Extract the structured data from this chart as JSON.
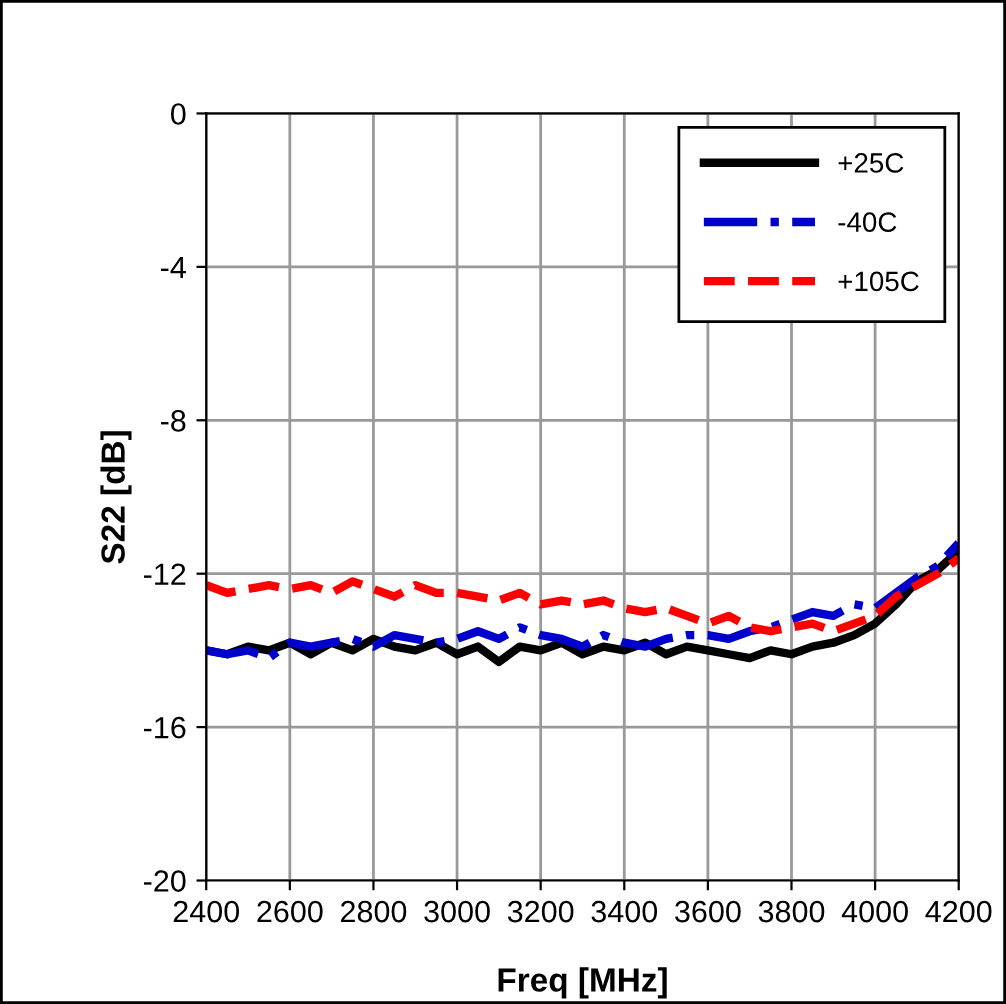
{
  "chart_data": {
    "type": "line",
    "xlabel": "Freq [MHz]",
    "ylabel": "S22 [dB]",
    "xlim": [
      2400,
      4200
    ],
    "xticks": [
      2400,
      2600,
      2800,
      3000,
      3200,
      3400,
      3600,
      3800,
      4000,
      4200
    ],
    "ylim": [
      -20,
      0
    ],
    "yticks": [
      -20,
      -16,
      -12,
      -8,
      -4,
      0
    ],
    "grid": true,
    "legend": "top right",
    "x": [
      2400,
      2450,
      2500,
      2550,
      2600,
      2650,
      2700,
      2750,
      2800,
      2850,
      2900,
      2950,
      3000,
      3050,
      3100,
      3150,
      3200,
      3250,
      3300,
      3350,
      3400,
      3450,
      3500,
      3550,
      3600,
      3650,
      3700,
      3750,
      3800,
      3850,
      3900,
      3950,
      4000,
      4050,
      4100,
      4150,
      4200
    ],
    "series": [
      {
        "name": "+25C",
        "color": "#000000",
        "line_style": "solid",
        "values": [
          -14.0,
          -14.1,
          -13.9,
          -14.0,
          -13.8,
          -14.1,
          -13.8,
          -14.0,
          -13.7,
          -13.9,
          -14.0,
          -13.8,
          -14.1,
          -13.9,
          -14.3,
          -13.9,
          -14.0,
          -13.8,
          -14.1,
          -13.9,
          -14.0,
          -13.8,
          -14.1,
          -13.9,
          -14.0,
          -14.1,
          -14.2,
          -14.0,
          -14.1,
          -13.9,
          -13.8,
          -13.6,
          -13.3,
          -12.8,
          -12.2,
          -11.9,
          -11.4
        ]
      },
      {
        "name": "-40C",
        "color": "#0000cc",
        "line_style": "dashdot",
        "values": [
          -14.0,
          -14.1,
          -14.0,
          -14.2,
          -13.8,
          -13.9,
          -13.8,
          -13.7,
          -13.9,
          -13.6,
          -13.7,
          -13.8,
          -13.7,
          -13.5,
          -13.7,
          -13.4,
          -13.6,
          -13.7,
          -13.9,
          -13.6,
          -13.8,
          -13.9,
          -13.7,
          -13.6,
          -13.6,
          -13.7,
          -13.5,
          -13.4,
          -13.2,
          -13.0,
          -13.1,
          -12.8,
          -12.9,
          -12.5,
          -12.1,
          -11.8,
          -11.2
        ]
      },
      {
        "name": "+105C",
        "color": "#ff0000",
        "line_style": "dashed",
        "values": [
          -12.3,
          -12.5,
          -12.4,
          -12.3,
          -12.4,
          -12.3,
          -12.5,
          -12.2,
          -12.4,
          -12.6,
          -12.3,
          -12.5,
          -12.5,
          -12.6,
          -12.7,
          -12.5,
          -12.8,
          -12.7,
          -12.8,
          -12.7,
          -12.9,
          -13.0,
          -12.9,
          -13.1,
          -13.3,
          -13.1,
          -13.4,
          -13.5,
          -13.4,
          -13.3,
          -13.5,
          -13.3,
          -13.1,
          -12.6,
          -12.3,
          -12.0,
          -11.6
        ]
      }
    ]
  }
}
